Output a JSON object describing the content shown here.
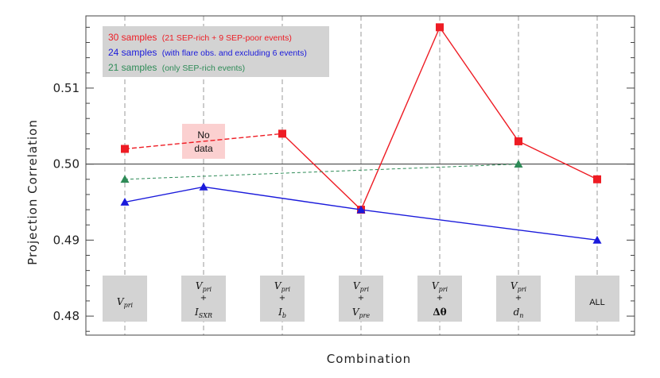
{
  "chart_data": {
    "type": "line",
    "xlabel": "Combination",
    "ylabel": "Projection Correlation",
    "ylim": [
      0.4775,
      0.5195
    ],
    "yticks": [
      0.48,
      0.49,
      0.5,
      0.51
    ],
    "reference_line": 0.5,
    "grid": "vertical dashed at each category",
    "legend_position": "top-left",
    "categories": [
      {
        "lines": [
          {
            "base": "V",
            "sub": "pri"
          }
        ]
      },
      {
        "lines": [
          {
            "base": "V",
            "sub": "pri"
          },
          {
            "plus": "+"
          },
          {
            "base": "I",
            "sub": "SXR"
          }
        ]
      },
      {
        "lines": [
          {
            "base": "V",
            "sub": "pri"
          },
          {
            "plus": "+"
          },
          {
            "base": "I",
            "sub": "b"
          }
        ]
      },
      {
        "lines": [
          {
            "base": "V",
            "sub": "pri"
          },
          {
            "plus": "+"
          },
          {
            "base": "V",
            "sub": "pre"
          }
        ]
      },
      {
        "lines": [
          {
            "base": "V",
            "sub": "pri"
          },
          {
            "plus": "+"
          },
          {
            "base": "Δθ",
            "sub": ""
          }
        ]
      },
      {
        "lines": [
          {
            "base": "V",
            "sub": "pri"
          },
          {
            "plus": "+"
          },
          {
            "base": "d",
            "sub": "n"
          }
        ]
      },
      {
        "lines": [
          {
            "all": "ALL"
          }
        ]
      }
    ],
    "series": [
      {
        "legend_count": "30 samples",
        "legend_detail": "(21 SEP-rich + 9 SEP-poor events)",
        "color": "#ee1c24",
        "marker": "square",
        "points": [
          [
            0,
            0.502
          ],
          [
            2,
            0.504
          ],
          [
            3,
            0.494
          ],
          [
            4,
            0.518
          ],
          [
            5,
            0.503
          ],
          [
            6,
            0.498
          ]
        ],
        "dashed_segments": [
          [
            0,
            2
          ]
        ]
      },
      {
        "legend_count": "24 samples",
        "legend_detail": "(with flare obs. and excluding 6 events)",
        "color": "#1a1adb",
        "marker": "triangle",
        "points": [
          [
            0,
            0.495
          ],
          [
            1,
            0.497
          ],
          [
            3,
            0.494
          ],
          [
            6,
            0.49
          ]
        ],
        "dashed_segments": []
      },
      {
        "legend_count": "21 samples",
        "legend_detail": "(only SEP-rich events)",
        "color": "#2e8b57",
        "marker": "triangle",
        "points": [
          [
            0,
            0.498
          ],
          [
            5,
            0.5
          ]
        ],
        "dashed_segments": [
          [
            0,
            5
          ]
        ]
      }
    ],
    "annotation": {
      "category_index": 1,
      "y": 0.503,
      "text_line1": "No",
      "text_line2": "data"
    }
  },
  "colors": {
    "legend_bg": "#d3d3d3",
    "label_box_bg": "#d3d3d3",
    "nodata_bg": "#fbd0d0",
    "axis": "#444444",
    "grid": "#9a9a9a"
  }
}
